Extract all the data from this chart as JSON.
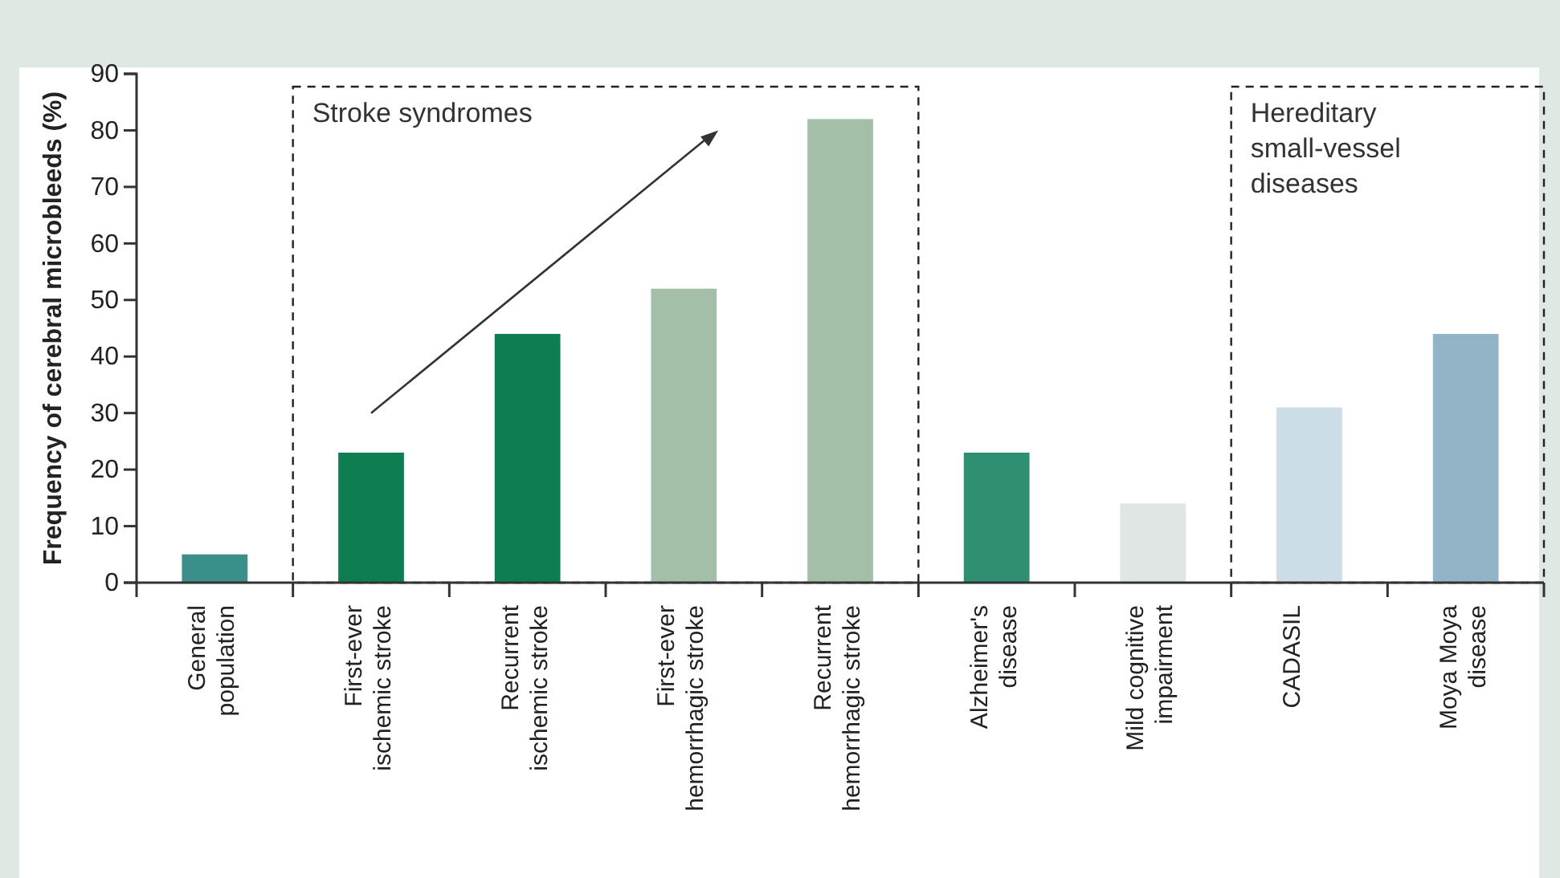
{
  "chart_data": {
    "type": "bar",
    "ylabel": "Frequency of cerebral microbleeds (%)",
    "categories": [
      "General population",
      "First-ever ischemic stroke",
      "Recurrent ischemic stroke",
      "First-ever hemorrhagic stroke",
      "Recurrent hemorrhagic stroke",
      "Alzheimer's disease",
      "Mild cognitive impairment",
      "CADASIL",
      "Moya Moya disease"
    ],
    "values": [
      5,
      23,
      44,
      52,
      82,
      23,
      14,
      31,
      44
    ],
    "colors": [
      "#3a8f8a",
      "#0f7d52",
      "#0f7d52",
      "#a3bfa8",
      "#a3bfa8",
      "#2f8f73",
      "#dfe6e4",
      "#cddde7",
      "#93b4c6"
    ],
    "ylim": [
      0,
      90
    ],
    "yticks": [
      0,
      10,
      20,
      30,
      40,
      50,
      60,
      70,
      80,
      90
    ],
    "annotations": [
      "Stroke syndromes",
      "Hereditary small-vessel diseases"
    ]
  }
}
